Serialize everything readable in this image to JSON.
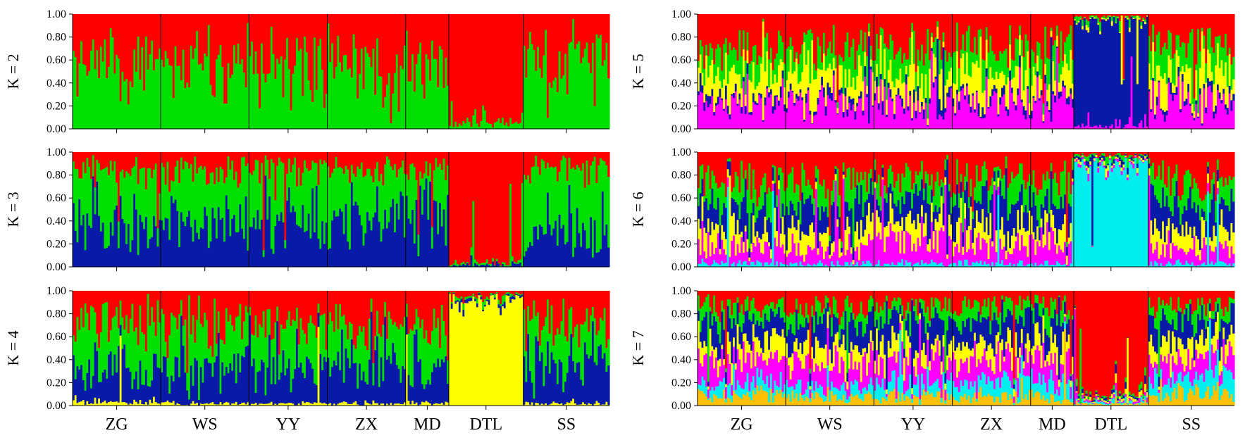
{
  "chart_data": {
    "type": "stacked-bar",
    "title": "",
    "y_axis": {
      "range": [
        0.0,
        1.0
      ],
      "ticks": [
        "0.00",
        "0.20",
        "0.40",
        "0.60",
        "0.80",
        "1.00"
      ]
    },
    "populations": [
      {
        "name": "ZG",
        "count": 45
      },
      {
        "name": "WS",
        "count": 45
      },
      {
        "name": "YY",
        "count": 40
      },
      {
        "name": "ZX",
        "count": 40
      },
      {
        "name": "MD",
        "count": 22
      },
      {
        "name": "DTL",
        "count": 38
      },
      {
        "name": "SS",
        "count": 44
      }
    ],
    "cluster_colors": {
      "red": "#ff0000",
      "green": "#00e000",
      "blue": "#0a1aa8",
      "yellow": "#ffff00",
      "magenta": "#ff00ff",
      "cyan": "#00f0f0",
      "orange": "#ffc000"
    },
    "panels": [
      {
        "k_label": "K = 2",
        "k": 2,
        "clusters": [
          "green",
          "red"
        ],
        "mean_proportions": {
          "ZG": [
            0.55,
            0.45
          ],
          "WS": [
            0.55,
            0.45
          ],
          "YY": [
            0.55,
            0.45
          ],
          "ZX": [
            0.55,
            0.45
          ],
          "MD": [
            0.6,
            0.4
          ],
          "DTL": [
            0.05,
            0.95
          ],
          "SS": [
            0.65,
            0.35
          ]
        }
      },
      {
        "k_label": "K = 3",
        "k": 3,
        "clusters": [
          "blue",
          "green",
          "red"
        ],
        "mean_proportions": {
          "ZG": [
            0.35,
            0.5,
            0.15
          ],
          "WS": [
            0.4,
            0.45,
            0.15
          ],
          "YY": [
            0.4,
            0.45,
            0.15
          ],
          "ZX": [
            0.45,
            0.4,
            0.15
          ],
          "MD": [
            0.45,
            0.4,
            0.15
          ],
          "DTL": [
            0.02,
            0.02,
            0.96
          ],
          "SS": [
            0.3,
            0.55,
            0.15
          ]
        }
      },
      {
        "k_label": "K = 4",
        "k": 4,
        "clusters": [
          "yellow",
          "blue",
          "green",
          "red"
        ],
        "mean_proportions": {
          "ZG": [
            0.03,
            0.3,
            0.4,
            0.27
          ],
          "WS": [
            0.02,
            0.3,
            0.38,
            0.3
          ],
          "YY": [
            0.02,
            0.3,
            0.38,
            0.3
          ],
          "ZX": [
            0.02,
            0.35,
            0.33,
            0.3
          ],
          "MD": [
            0.02,
            0.35,
            0.33,
            0.3
          ],
          "DTL": [
            0.93,
            0.02,
            0.02,
            0.03
          ],
          "SS": [
            0.02,
            0.35,
            0.33,
            0.3
          ]
        }
      },
      {
        "k_label": "K = 5",
        "k": 5,
        "clusters": [
          "magenta",
          "blue",
          "yellow",
          "green",
          "red"
        ],
        "mean_proportions": {
          "ZG": [
            0.25,
            0.05,
            0.2,
            0.2,
            0.3
          ],
          "WS": [
            0.25,
            0.05,
            0.2,
            0.2,
            0.3
          ],
          "YY": [
            0.25,
            0.05,
            0.2,
            0.2,
            0.3
          ],
          "ZX": [
            0.25,
            0.05,
            0.22,
            0.2,
            0.28
          ],
          "MD": [
            0.25,
            0.05,
            0.2,
            0.2,
            0.3
          ],
          "DTL": [
            0.03,
            0.92,
            0.01,
            0.02,
            0.02
          ],
          "SS": [
            0.25,
            0.05,
            0.2,
            0.2,
            0.3
          ]
        }
      },
      {
        "k_label": "K = 6",
        "k": 6,
        "clusters": [
          "cyan",
          "magenta",
          "yellow",
          "blue",
          "green",
          "red"
        ],
        "mean_proportions": {
          "ZG": [
            0.03,
            0.15,
            0.15,
            0.22,
            0.2,
            0.25
          ],
          "WS": [
            0.03,
            0.15,
            0.15,
            0.22,
            0.2,
            0.25
          ],
          "YY": [
            0.03,
            0.2,
            0.15,
            0.22,
            0.18,
            0.22
          ],
          "ZX": [
            0.03,
            0.15,
            0.15,
            0.22,
            0.2,
            0.25
          ],
          "MD": [
            0.03,
            0.15,
            0.15,
            0.22,
            0.2,
            0.25
          ],
          "DTL": [
            0.9,
            0.02,
            0.02,
            0.02,
            0.02,
            0.02
          ],
          "SS": [
            0.03,
            0.15,
            0.15,
            0.22,
            0.2,
            0.25
          ]
        }
      },
      {
        "k_label": "K = 7",
        "k": 7,
        "clusters": [
          "orange",
          "cyan",
          "magenta",
          "yellow",
          "blue",
          "green",
          "red"
        ],
        "mean_proportions": {
          "ZG": [
            0.1,
            0.1,
            0.2,
            0.15,
            0.2,
            0.12,
            0.13
          ],
          "WS": [
            0.08,
            0.1,
            0.2,
            0.15,
            0.2,
            0.12,
            0.15
          ],
          "YY": [
            0.08,
            0.12,
            0.2,
            0.15,
            0.2,
            0.12,
            0.13
          ],
          "ZX": [
            0.08,
            0.12,
            0.2,
            0.15,
            0.2,
            0.12,
            0.13
          ],
          "MD": [
            0.08,
            0.12,
            0.2,
            0.15,
            0.2,
            0.12,
            0.13
          ],
          "DTL": [
            0.02,
            0.02,
            0.02,
            0.02,
            0.02,
            0.02,
            0.88
          ],
          "SS": [
            0.12,
            0.15,
            0.15,
            0.15,
            0.18,
            0.12,
            0.13
          ]
        }
      }
    ]
  }
}
